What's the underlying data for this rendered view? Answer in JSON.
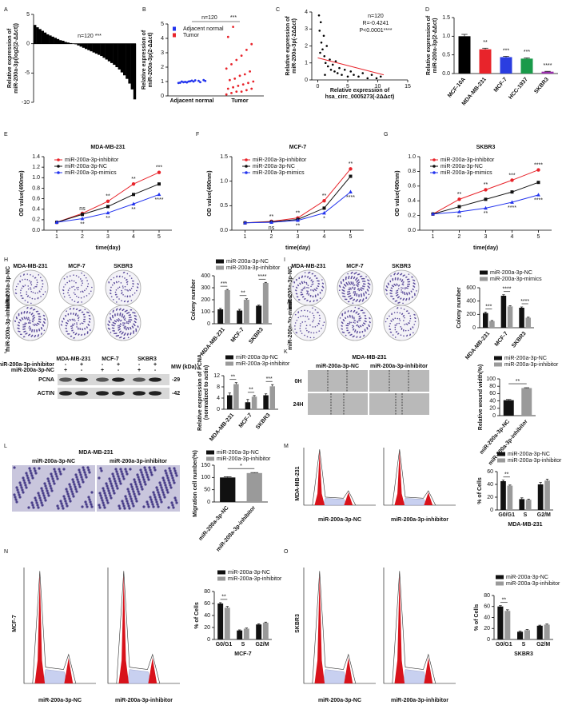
{
  "chart_data": [
    {
      "type": "bar",
      "ylabel": [
        "Relative expression of",
        "miR-200a-3p(log2(2-ΔΔct))"
      ],
      "annotations": [
        "n=120 ***"
      ],
      "ylim": [
        -10,
        5
      ],
      "yticks": [
        -10,
        -5,
        0,
        5
      ],
      "series": [
        {
          "color": "#000000",
          "values": [
            3.2,
            2.8,
            2.5,
            2.2,
            1.9,
            1.6,
            1.4,
            1.2,
            1.0,
            0.8,
            0.6,
            0.5,
            0.3,
            0.2,
            0.1,
            0,
            -0.1,
            -0.3,
            -0.5,
            -0.7,
            -0.9,
            -1.1,
            -1.3,
            -1.5,
            -1.7,
            -1.9,
            -2.1,
            -2.4,
            -2.7,
            -3.0,
            -3.3,
            -3.6,
            -4.0,
            -4.4,
            -4.9,
            -5.4,
            -6.0,
            -6.8,
            -7.8,
            -9.5
          ]
        }
      ]
    },
    {
      "type": "strip",
      "ylabel": [
        "Relative expression of",
        "miR-200a-3p(2-ΔΔct)"
      ],
      "annotations": [
        "n=120",
        "***"
      ],
      "categories": [
        "Adjacent normal",
        "Tumor"
      ],
      "ylim": [
        0,
        5
      ],
      "yticks": [
        0,
        1,
        2,
        3,
        4,
        5
      ],
      "legend": true,
      "series": [
        {
          "name": "Adjacent normal",
          "color": "#2233ee",
          "values": [
            0.9,
            0.95,
            1.0,
            1.0,
            1.05,
            1.1,
            0.92,
            0.98,
            1.02,
            1.08,
            0.96,
            1.04,
            1.0,
            0.94,
            1.06
          ]
        },
        {
          "name": "Tumor",
          "color": "#e8242b",
          "values": [
            0.1,
            0.2,
            0.3,
            0.3,
            0.4,
            0.5,
            0.5,
            0.6,
            0.7,
            0.8,
            0.9,
            1.0,
            1.1,
            1.2,
            1.4,
            1.5,
            1.7,
            1.9,
            2.2,
            2.5,
            2.8,
            3.2,
            3.6,
            4.1,
            4.8
          ]
        }
      ]
    },
    {
      "type": "scatter",
      "ylabel": [
        "Relative expression of",
        "miR-200a-3p(-2ΔΔct)"
      ],
      "xlabel": [
        "Relative expression of",
        "hsa_circ_0005273(-2ΔΔct)"
      ],
      "annotations": [
        "n=120",
        "R=-0.4241",
        "P<0.0001****"
      ],
      "xlim": [
        -1,
        15
      ],
      "xticks": [
        0,
        5,
        10,
        15
      ],
      "ylim": [
        0,
        4
      ],
      "yticks": [
        0,
        1,
        2,
        3,
        4
      ],
      "series": [
        {
          "color": "#000000",
          "x": [
            0.2,
            0.3,
            0.5,
            0.6,
            0.8,
            1.0,
            1.1,
            1.3,
            1.5,
            1.7,
            2.0,
            2.2,
            2.5,
            2.8,
            3.0,
            3.3,
            3.6,
            4.0,
            4.5,
            5.0,
            5.5,
            6.0,
            6.8,
            7.5,
            8.3,
            9.0,
            9.8,
            10.5,
            0.4,
            1.2
          ],
          "values": [
            3.8,
            2.9,
            3.4,
            2.2,
            1.8,
            2.6,
            1.4,
            1.0,
            2.0,
            0.8,
            1.2,
            0.6,
            0.9,
            0.5,
            1.1,
            0.4,
            0.7,
            0.3,
            0.6,
            0.2,
            0.5,
            0.3,
            0.2,
            0.4,
            0.1,
            0.3,
            0.1,
            0.2,
            1.6,
            0.3
          ]
        }
      ],
      "trendline": {
        "color": "#e8242b",
        "x": [
          0,
          11
        ],
        "y": [
          1.3,
          0.3
        ]
      }
    },
    {
      "type": "bar",
      "ylabel": [
        "Relative expression of",
        "miR-200a-3p(2-ΔΔct)"
      ],
      "categories": [
        "MCF-10A",
        "MDA-MB-231",
        "MCF-7",
        "HCC-1937",
        "SKBR3"
      ],
      "ylim": [
        0,
        1.5
      ],
      "yticks": [
        {
          "value": 0,
          "label": "0.0"
        },
        0.5,
        {
          "value": 1,
          "label": "1.0"
        },
        1.5
      ],
      "significance": [
        null,
        "**",
        "***",
        "***",
        "****"
      ],
      "series": [
        {
          "colors": [
            "#000000",
            "#e8242b",
            "#2a3de0",
            "#1a9a4a",
            "#9b2fae"
          ],
          "values": [
            1.0,
            0.65,
            0.44,
            0.4,
            0.05
          ],
          "errors": [
            0.05,
            0.03,
            0.02,
            0.02,
            0.01
          ]
        }
      ]
    },
    {
      "type": "line",
      "title": "MDA-MB-231",
      "ylabel": [
        "OD value(490nm)"
      ],
      "xlabel": "time(day)",
      "x": [
        1,
        2,
        3,
        4,
        5
      ],
      "xlim": [
        0.5,
        5.5
      ],
      "xticks": [
        1,
        2,
        3,
        4,
        5
      ],
      "ylim": [
        0,
        1.4
      ],
      "yticks": [
        {
          "value": 0,
          "label": "0.0"
        },
        0.2,
        0.4,
        0.6,
        0.8,
        {
          "value": 1,
          "label": "1.0"
        },
        1.2,
        1.4
      ],
      "legend": true,
      "significance_upper": [
        null,
        "ns",
        "**",
        "**",
        "***"
      ],
      "significance_lower": [
        null,
        "**",
        "**",
        "**",
        "****"
      ],
      "series": [
        {
          "name": "miR-200a-3p-inhibitor",
          "color": "#e8242b",
          "marker": "circle",
          "values": [
            0.15,
            0.32,
            0.55,
            0.88,
            1.1
          ]
        },
        {
          "name": "miR-200a-3p-NC",
          "color": "#111111",
          "marker": "square",
          "values": [
            0.15,
            0.3,
            0.45,
            0.68,
            0.88
          ]
        },
        {
          "name": "miR-200a-3p-mimics",
          "color": "#2233ee",
          "marker": "triangle",
          "values": [
            0.15,
            0.22,
            0.33,
            0.5,
            0.68
          ]
        }
      ]
    },
    {
      "type": "line",
      "title": "MCF-7",
      "ylabel": [
        "OD value(490nm)"
      ],
      "xlabel": "time(day)",
      "x": [
        1,
        2,
        3,
        4,
        5
      ],
      "xlim": [
        0.5,
        5.5
      ],
      "xticks": [
        1,
        2,
        3,
        4,
        5
      ],
      "ylim": [
        0,
        1.5
      ],
      "yticks": [
        {
          "value": 0,
          "label": "0.0"
        },
        0.5,
        {
          "value": 1,
          "label": "1.0"
        },
        1.5
      ],
      "legend": true,
      "significance_upper": [
        null,
        "**",
        "**",
        "**",
        "**"
      ],
      "significance_lower": [
        null,
        "ns",
        "**",
        "*",
        "****"
      ],
      "series": [
        {
          "name": "miR-200a-3p-inhibitor",
          "color": "#e8242b",
          "marker": "circle",
          "values": [
            0.15,
            0.18,
            0.25,
            0.6,
            1.25
          ]
        },
        {
          "name": "miR-200a-3p-NC",
          "color": "#111111",
          "marker": "square",
          "values": [
            0.15,
            0.17,
            0.22,
            0.45,
            1.1
          ]
        },
        {
          "name": "miR-200a-3p-mimics",
          "color": "#2233ee",
          "marker": "triangle",
          "values": [
            0.15,
            0.16,
            0.2,
            0.35,
            0.78
          ]
        }
      ]
    },
    {
      "type": "line",
      "title": "SKBR3",
      "ylabel": [
        "OD value(490nm)"
      ],
      "xlabel": "time(day)",
      "x": [
        1,
        2,
        3,
        4,
        5
      ],
      "xlim": [
        0.5,
        5.5
      ],
      "xticks": [
        1,
        2,
        3,
        4,
        5
      ],
      "ylim": [
        0,
        1
      ],
      "yticks": [
        {
          "value": 0,
          "label": "0.0"
        },
        0.2,
        0.4,
        0.6,
        0.8,
        {
          "value": 1,
          "label": "1.0"
        }
      ],
      "legend": true,
      "significance_upper": [
        null,
        "**",
        "**",
        "***",
        "****"
      ],
      "significance_lower": [
        null,
        "**",
        "**",
        "****",
        "****"
      ],
      "series": [
        {
          "name": "miR-200a-3p-inhibitor",
          "color": "#e8242b",
          "marker": "circle",
          "values": [
            0.22,
            0.42,
            0.55,
            0.68,
            0.82
          ]
        },
        {
          "name": "miR-200a-3p-NC",
          "color": "#111111",
          "marker": "square",
          "values": [
            0.22,
            0.32,
            0.42,
            0.52,
            0.65
          ]
        },
        {
          "name": "miR-200a-3p-mimics",
          "color": "#2233ee",
          "marker": "triangle",
          "values": [
            0.22,
            0.25,
            0.3,
            0.38,
            0.48
          ]
        }
      ]
    },
    {
      "type": "bar",
      "ylabel": [
        "Colony number"
      ],
      "categories": [
        "MDA-MB-231",
        "MCF-7",
        "SKBR3"
      ],
      "ylim": [
        0,
        400
      ],
      "yticks": [
        0,
        100,
        200,
        300,
        400
      ],
      "legend": true,
      "significance": [
        "***",
        "**",
        "****"
      ],
      "series": [
        {
          "name": "miR-200a-3p-NC",
          "color": "#111111",
          "values": [
            120,
            110,
            150
          ],
          "errors": [
            8,
            10,
            5
          ]
        },
        {
          "name": "miR-200a-3p-inhibitor",
          "color": "#9a9a9a",
          "values": [
            280,
            200,
            340
          ],
          "errors": [
            6,
            8,
            5
          ]
        }
      ]
    },
    {
      "type": "bar",
      "ylabel": [
        "Colony number"
      ],
      "categories": [
        "MDA-MB-231",
        "MCF-7",
        "SKBR3"
      ],
      "ylim": [
        0,
        600
      ],
      "yticks": [
        0,
        200,
        400,
        600
      ],
      "legend": true,
      "significance": [
        "***",
        "****",
        "****"
      ],
      "series": [
        {
          "name": "miR-200a-3p-NC",
          "color": "#111111",
          "values": [
            220,
            480,
            300
          ],
          "errors": [
            15,
            15,
            12
          ]
        },
        {
          "name": "miR-200a-3p-mimics",
          "color": "#9a9a9a",
          "values": [
            100,
            320,
            150
          ],
          "errors": [
            8,
            10,
            8
          ]
        }
      ]
    },
    {
      "type": "bar",
      "ylabel": [
        "Relative expression of PCNA",
        "(normalized to actin)"
      ],
      "categories": [
        "MDA-MB-231",
        "MCF-7",
        "SKBR3"
      ],
      "ylim": [
        0,
        12
      ],
      "yticks": [
        0,
        4,
        8,
        12
      ],
      "legend": true,
      "significance": [
        "**",
        "**",
        "***"
      ],
      "series": [
        {
          "name": "miR-200a-3p-NC",
          "color": "#111111",
          "values": [
            5,
            2.5,
            5
          ],
          "errors": [
            0.8,
            1,
            0.5
          ]
        },
        {
          "name": "miR-200a-3p-inhibitor",
          "color": "#9a9a9a",
          "values": [
            9,
            4.5,
            8.2
          ],
          "errors": [
            0.5,
            0.4,
            0.6
          ]
        }
      ]
    },
    {
      "type": "bar",
      "ylabel": [
        "Relative wound width(%)"
      ],
      "categories": [
        "miR-200a-3p-NC",
        "miR-200a-3p-inhibitor"
      ],
      "ylim": [
        0,
        100
      ],
      "yticks": [
        0,
        20,
        40,
        60,
        80,
        100
      ],
      "legend": true,
      "bracket": "**",
      "series": [
        {
          "colors": [
            "#111111",
            "#9a9a9a"
          ],
          "values": [
            42,
            75
          ],
          "errors": [
            2,
            1
          ]
        }
      ]
    },
    {
      "type": "bar",
      "ylabel": [
        "Migration cell number(%)"
      ],
      "categories": [
        "miR-200a-3p-NC",
        "miR-200a-3p-inhibitor"
      ],
      "ylim": [
        0,
        150
      ],
      "yticks": [
        0,
        50,
        100,
        150
      ],
      "legend": true,
      "bracket": "*",
      "series": [
        {
          "colors": [
            "#111111",
            "#9a9a9a"
          ],
          "values": [
            100,
            118
          ],
          "errors": [
            3,
            2
          ]
        }
      ]
    },
    {
      "type": "bar",
      "ylabel": [
        "% of Cells"
      ],
      "xlabel": "MDA-MB-231",
      "categories": [
        "G0/G1",
        "S",
        "G2/M"
      ],
      "ylim": [
        0,
        60
      ],
      "yticks": [
        0,
        20,
        40,
        60
      ],
      "legend": true,
      "significance": [
        "**",
        null,
        null
      ],
      "series": [
        {
          "name": "miR-200a-3p-NC",
          "color": "#111111",
          "values": [
            45,
            17,
            40
          ],
          "errors": [
            1.5,
            2,
            3
          ]
        },
        {
          "name": "miR-200a-3p-inhibitor",
          "color": "#9a9a9a",
          "values": [
            38,
            16,
            46
          ],
          "errors": [
            1,
            1,
            2
          ]
        }
      ]
    },
    {
      "type": "bar",
      "ylabel": [
        "% of Cells"
      ],
      "xlabel": "MCF-7",
      "categories": [
        "G0/G1",
        "S",
        "G2/M"
      ],
      "ylim": [
        0,
        80
      ],
      "yticks": [
        0,
        20,
        40,
        60,
        80
      ],
      "legend": true,
      "significance": [
        "**",
        null,
        null
      ],
      "series": [
        {
          "name": "miR-200a-3p-NC",
          "color": "#111111",
          "values": [
            60,
            15,
            25
          ],
          "errors": [
            1.5,
            1,
            1
          ]
        },
        {
          "name": "miR-200a-3p-inhibitor",
          "color": "#9a9a9a",
          "values": [
            53,
            18,
            28
          ],
          "errors": [
            2,
            1,
            1
          ]
        }
      ]
    },
    {
      "type": "bar",
      "ylabel": [
        "% of Cells"
      ],
      "xlabel": "SKBR3",
      "categories": [
        "G0/G1",
        "S",
        "G2/M"
      ],
      "ylim": [
        0,
        80
      ],
      "yticks": [
        0,
        20,
        40,
        60,
        80
      ],
      "legend": true,
      "significance": [
        "**",
        null,
        null
      ],
      "series": [
        {
          "name": "miR-200a-3p-NC",
          "color": "#111111",
          "values": [
            60,
            14,
            25
          ],
          "errors": [
            1.5,
            1,
            1
          ]
        },
        {
          "name": "miR-200a-3p-inhibitor",
          "color": "#9a9a9a",
          "values": [
            52,
            17,
            27
          ],
          "errors": [
            2,
            1,
            1
          ]
        }
      ]
    }
  ],
  "figure": {
    "panels": [
      "A",
      "B",
      "C",
      "D",
      "E",
      "F",
      "G",
      "H",
      "I",
      "J",
      "K",
      "L",
      "M",
      "N",
      "O"
    ],
    "H": {
      "columns": [
        "MDA-MB-231",
        "MCF-7",
        "SKBR3"
      ],
      "rows": [
        "miR-200a-3p-NC",
        "miR-200a-3p-inhibitor"
      ]
    },
    "I": {
      "columns": [
        "MDA-MB-231",
        "MCF-7",
        "SKBR3"
      ],
      "rows": [
        "miR-200a-3p-NC",
        "miR-200a-3p-mimics"
      ]
    },
    "J": {
      "columns": [
        "MDA-MB-231",
        "MCF-7",
        "SKBR3"
      ],
      "rows": [
        "miR-200a-3p-inhibitor",
        "miR-200a-3p-NC"
      ],
      "signs": [
        "-",
        "+"
      ],
      "mw": "MW (kDa)",
      "bands": [
        "PCNA",
        "ACTIN"
      ],
      "sizes": [
        "-29",
        "-42"
      ]
    },
    "K": {
      "title": "MDA-MB-231",
      "columns": [
        "miR-200a-3p-NC",
        "miR-200a-3p-inhibitor"
      ],
      "rows": [
        "0H",
        "24H"
      ]
    },
    "L": {
      "title": "MDA-MB-231",
      "columns": [
        "miR-200a-3p-NC",
        "miR-200a-3p-inhibitor"
      ]
    },
    "M": {
      "cell": "MDA-MB-231",
      "captions": [
        "miR-200a-3p-NC",
        "miR-200a-3p-inhibitor"
      ]
    },
    "N": {
      "cell": "MCF-7",
      "captions": [
        "miR-200a-3p-NC",
        "miR-200a-3p-inhibitor"
      ]
    },
    "O": {
      "cell": "SKBR3",
      "captions": [
        "miR-200a-3p-NC",
        "miR-200a-3p-inhibitor"
      ]
    }
  }
}
